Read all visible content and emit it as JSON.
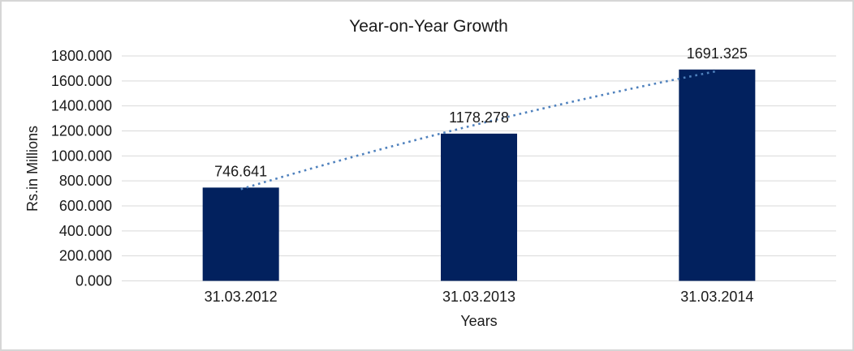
{
  "window": {
    "background": "#FFFFFF",
    "border_color": "#D6D6D6"
  },
  "chart_data": {
    "type": "bar",
    "title": "Year-on-Year Growth",
    "xlabel": "Years",
    "ylabel": "Rs.in Millions",
    "categories": [
      "31.03.2012",
      "31.03.2013",
      "31.03.2014"
    ],
    "values": [
      746.641,
      1178.278,
      1691.325
    ],
    "data_labels": [
      "746.641",
      "1178.278",
      "1691.325"
    ],
    "ylim": [
      0,
      1800
    ],
    "ytick_step": 200,
    "ytick_labels": [
      "0.000",
      "200.000",
      "400.000",
      "600.000",
      "800.000",
      "1000.000",
      "1200.000",
      "1400.000",
      "1600.000",
      "1800.000"
    ],
    "grid": true,
    "legend": "none",
    "trendline": {
      "style": "dotted",
      "color": "#4F81BD",
      "through": "bar tops"
    },
    "colors": {
      "bar": "#02215E",
      "trendline": "#4F81BD",
      "gridline": "#D9D9D9",
      "text": "#1A1A1A"
    }
  }
}
